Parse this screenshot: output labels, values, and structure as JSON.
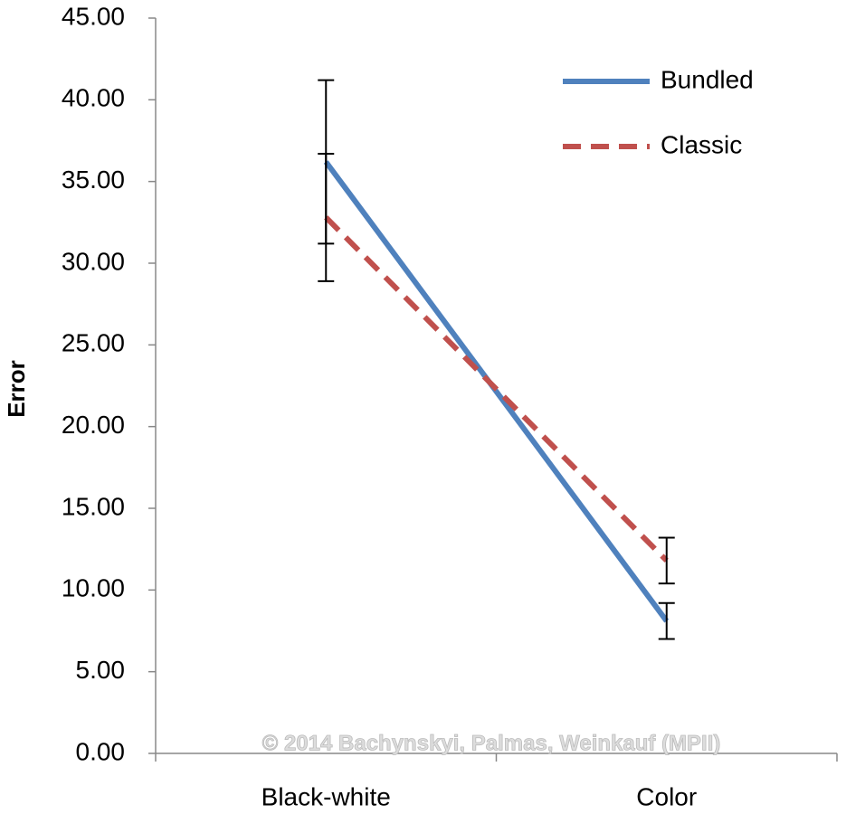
{
  "chart_data": {
    "type": "line",
    "y_label": "Error",
    "categories": [
      "Black-white",
      "Color"
    ],
    "series": [
      {
        "name": "Bundled",
        "color": "#4f81bd",
        "dash": false,
        "values": [
          36.2,
          8.1
        ],
        "errors": [
          5.0,
          1.1
        ]
      },
      {
        "name": "Classic",
        "color": "#c0504d",
        "dash": true,
        "values": [
          32.8,
          11.8
        ],
        "errors": [
          3.9,
          1.4
        ]
      }
    ],
    "ylim": [
      0,
      45
    ],
    "yticks": [
      {
        "value": 0,
        "label": "0.00"
      },
      {
        "value": 5,
        "label": "5.00"
      },
      {
        "value": 10,
        "label": "10.00"
      },
      {
        "value": 15,
        "label": "15.00"
      },
      {
        "value": 20,
        "label": "20.00"
      },
      {
        "value": 25,
        "label": "25.00"
      },
      {
        "value": 30,
        "label": "30.00"
      },
      {
        "value": 35,
        "label": "35.00"
      },
      {
        "value": 40,
        "label": "40.00"
      },
      {
        "value": 45,
        "label": "45.00"
      }
    ],
    "legend": "top-right",
    "watermark": "© 2014 Bachynskyi, Palmas, Weinkauf (MPII)"
  }
}
